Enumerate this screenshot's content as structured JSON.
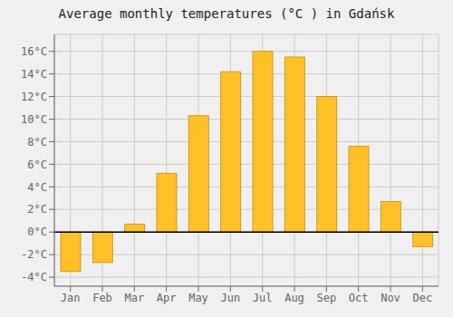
{
  "chart_data": {
    "type": "bar",
    "title": "Average monthly temperatures (°C ) in Gdańsk",
    "categories": [
      "Jan",
      "Feb",
      "Mar",
      "Apr",
      "May",
      "Jun",
      "Jul",
      "Aug",
      "Sep",
      "Oct",
      "Nov",
      "Dec"
    ],
    "values": [
      -3.5,
      -2.7,
      0.7,
      5.2,
      10.3,
      14.2,
      16.0,
      15.5,
      12.0,
      7.6,
      2.7,
      -1.3
    ],
    "color": "#FFC125",
    "ylim": [
      -4.8,
      17.5
    ],
    "yticks": [
      {
        "value": -4,
        "label": "-4°C"
      },
      {
        "value": -2,
        "label": "-2°C"
      },
      {
        "value": 0,
        "label": "0°C"
      },
      {
        "value": 2,
        "label": "2°C"
      },
      {
        "value": 4,
        "label": "4°C"
      },
      {
        "value": 6,
        "label": "6°C"
      },
      {
        "value": 8,
        "label": "8°C"
      },
      {
        "value": 10,
        "label": "10°C"
      },
      {
        "value": 12,
        "label": "12°C"
      },
      {
        "value": 14,
        "label": "14°C"
      },
      {
        "value": 16,
        "label": "16°C"
      }
    ],
    "grid": true
  }
}
